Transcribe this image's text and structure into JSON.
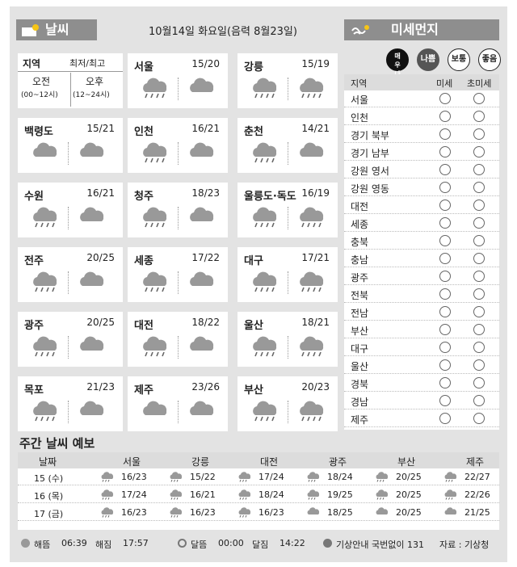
{
  "header": {
    "weather_title": "날씨",
    "date": "10월14일 화요일(음력 8월23일)",
    "dust_title": "미세먼지"
  },
  "legend": {
    "region": "지역",
    "minmax": "최저/최고",
    "am": "오전",
    "am_hours": "(00~12시)",
    "pm": "오후",
    "pm_hours": "(12~24시)"
  },
  "cities": [
    {
      "name": "서울",
      "temp": "15/20",
      "am": "rain",
      "pm": "cloud"
    },
    {
      "name": "강릉",
      "temp": "15/19",
      "am": "rain",
      "pm": "rain"
    },
    {
      "name": "백령도",
      "temp": "15/21",
      "am": "cloud",
      "pm": "cloud"
    },
    {
      "name": "인천",
      "temp": "16/21",
      "am": "rain",
      "pm": "cloud"
    },
    {
      "name": "춘천",
      "temp": "14/21",
      "am": "rain",
      "pm": "cloud"
    },
    {
      "name": "수원",
      "temp": "16/21",
      "am": "rain",
      "pm": "cloud"
    },
    {
      "name": "청주",
      "temp": "18/23",
      "am": "rain",
      "pm": "cloud"
    },
    {
      "name": "울릉도·독도",
      "temp": "16/19",
      "am": "rain",
      "pm": "rain"
    },
    {
      "name": "전주",
      "temp": "20/25",
      "am": "rain",
      "pm": "cloud"
    },
    {
      "name": "세종",
      "temp": "17/22",
      "am": "rain",
      "pm": "cloud"
    },
    {
      "name": "대구",
      "temp": "17/21",
      "am": "rain",
      "pm": "rain"
    },
    {
      "name": "광주",
      "temp": "20/25",
      "am": "rain",
      "pm": "cloud"
    },
    {
      "name": "대전",
      "temp": "18/22",
      "am": "rain",
      "pm": "cloud"
    },
    {
      "name": "울산",
      "temp": "18/21",
      "am": "rain",
      "pm": "rain"
    },
    {
      "name": "목포",
      "temp": "21/23",
      "am": "rain",
      "pm": "cloud"
    },
    {
      "name": "제주",
      "temp": "23/26",
      "am": "cloud",
      "pm": "cloud"
    },
    {
      "name": "부산",
      "temp": "20/23",
      "am": "rain",
      "pm": "rain"
    }
  ],
  "dust": {
    "badges": [
      "매우나쁨",
      "나쁨",
      "보통",
      "좋음"
    ],
    "col_region": "지역",
    "col_pm10": "미세",
    "col_pm25": "초미세",
    "regions": [
      "서울",
      "인천",
      "경기 북부",
      "경기 남부",
      "강원 영서",
      "강원 영동",
      "대전",
      "세종",
      "충북",
      "충남",
      "광주",
      "전북",
      "전남",
      "부산",
      "대구",
      "울산",
      "경북",
      "경남",
      "제주"
    ]
  },
  "weekly": {
    "title": "주간 날씨 예보",
    "col_date": "날짜",
    "cities": [
      "서울",
      "강릉",
      "대전",
      "광주",
      "부산",
      "제주"
    ],
    "rows": [
      {
        "date": "15 (수)",
        "temps": [
          "16/23",
          "15/22",
          "17/24",
          "18/24",
          "20/25",
          "22/27"
        ]
      },
      {
        "date": "16 (목)",
        "temps": [
          "17/24",
          "16/21",
          "18/24",
          "19/25",
          "20/25",
          "22/26"
        ]
      },
      {
        "date": "17 (금)",
        "temps": [
          "16/23",
          "16/23",
          "16/23",
          "18/25",
          "20/25",
          "21/25"
        ]
      }
    ]
  },
  "footer": {
    "sunrise_label": "해뜸",
    "sunrise": "06:39",
    "sunset_label": "해짐",
    "sunset": "17:57",
    "moonrise_label": "달뜸",
    "moonrise": "00:00",
    "moonset_label": "달짐",
    "moonset": "14:22",
    "hotline": "기상안내 국번없이 131",
    "source": "자료 : 기상청"
  }
}
